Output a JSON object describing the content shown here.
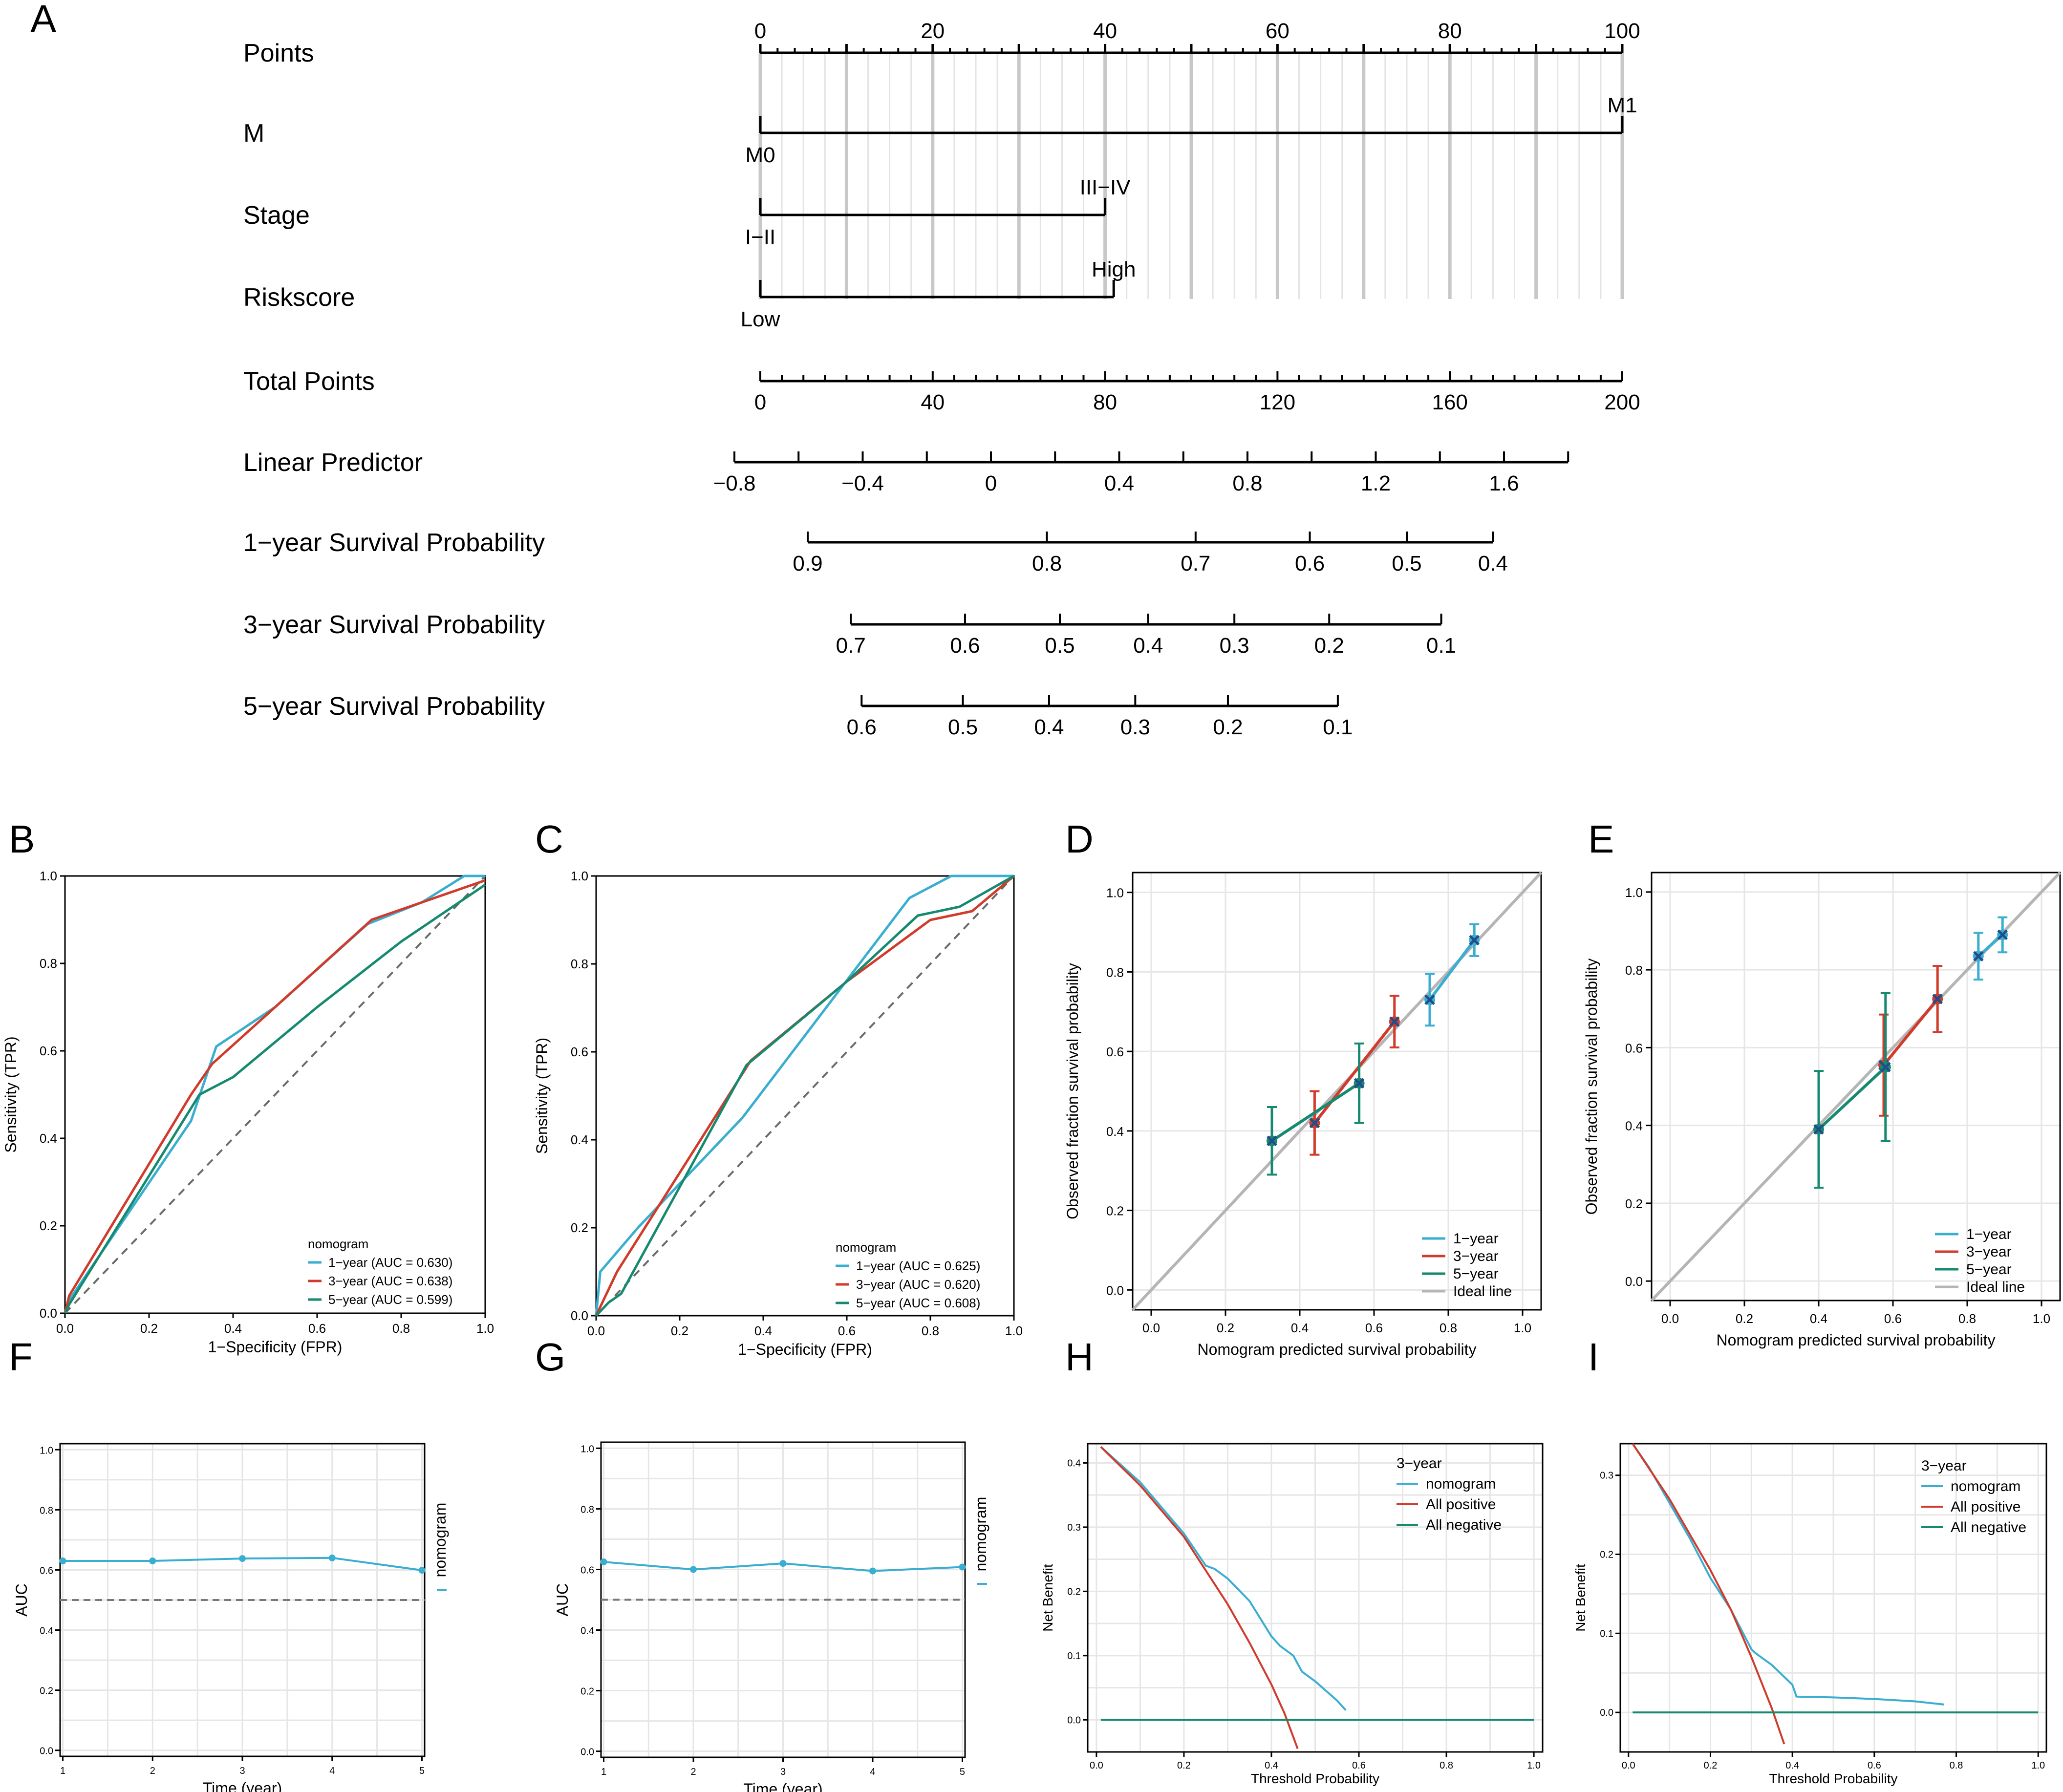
{
  "panel_letters": [
    "A",
    "B",
    "C",
    "D",
    "E",
    "F",
    "G",
    "H",
    "I"
  ],
  "colors": {
    "c1": "#3aaed0",
    "c3": "#d13b2b",
    "c5": "#168a6f",
    "ideal": "#b5b5b5",
    "grid": "#e6e6e6",
    "diag": "#6b6b6b",
    "dark": "#1f4e8a"
  },
  "chart_data": [
    {
      "panel": "A",
      "type": "nomogram",
      "rows": [
        {
          "label": "Points",
          "scale": "points",
          "ticks": [
            "0",
            "20",
            "40",
            "60",
            "80",
            "100"
          ],
          "values": [
            0,
            20,
            40,
            60,
            80,
            100
          ]
        },
        {
          "label": "M",
          "levels": [
            {
              "name": "M0",
              "points": 0
            },
            {
              "name": "M1",
              "points": 100
            }
          ]
        },
        {
          "label": "Stage",
          "levels": [
            {
              "name": "I−II",
              "points": 0
            },
            {
              "name": "III−IV",
              "points": 40
            }
          ]
        },
        {
          "label": "Riskscore",
          "levels": [
            {
              "name": "Low",
              "points": 0
            },
            {
              "name": "High",
              "points": 41
            }
          ]
        },
        {
          "label": "Total Points",
          "ticks": [
            "0",
            "40",
            "80",
            "120",
            "160",
            "200"
          ],
          "values": [
            0,
            40,
            80,
            120,
            160,
            200
          ]
        },
        {
          "label": "Linear Predictor",
          "ticks": [
            "−0.8",
            "−0.4",
            "0",
            "0.4",
            "0.8",
            "1.2",
            "1.6"
          ],
          "values": [
            -0.8,
            -0.4,
            0,
            0.4,
            0.8,
            1.2,
            1.6
          ]
        },
        {
          "label": "1−year Survival Probability",
          "ticks": [
            "0.9",
            "0.8",
            "0.7",
            "0.6",
            "0.5",
            "0.4"
          ],
          "total_points": [
            11,
            66.5,
            101,
            127.5,
            150,
            170
          ]
        },
        {
          "label": "3−year Survival Probability",
          "ticks": [
            "0.7",
            "0.6",
            "0.5",
            "0.4",
            "0.3",
            "0.2",
            "0.1"
          ],
          "total_points": [
            21,
            47.5,
            69.5,
            90,
            110,
            132,
            158
          ]
        },
        {
          "label": "5−year Survival Probability",
          "ticks": [
            "0.6",
            "0.5",
            "0.4",
            "0.3",
            "0.2",
            "0.1"
          ],
          "total_points": [
            23.5,
            47,
            67,
            87,
            108.5,
            134
          ]
        }
      ]
    },
    {
      "panel": "B",
      "type": "line",
      "title": "",
      "xlabel": "1−Specificity (FPR)",
      "ylabel": "Sensitivity (TPR)",
      "xlim": [
        0,
        1
      ],
      "ylim": [
        0,
        1
      ],
      "ticks": [
        "0.0",
        "0.2",
        "0.4",
        "0.6",
        "0.8",
        "1.0"
      ],
      "legend_title": "nomogram",
      "series": [
        {
          "name": "1−year (AUC = 0.630)",
          "x": [
            0,
            0.01,
            0.3,
            0.36,
            0.5,
            0.72,
            0.85,
            0.95,
            1.0
          ],
          "y": [
            0,
            0.03,
            0.44,
            0.61,
            0.7,
            0.89,
            0.94,
            1.0,
            1.0
          ]
        },
        {
          "name": "3−year (AUC = 0.638)",
          "x": [
            0,
            0.01,
            0.3,
            0.35,
            0.5,
            0.73,
            0.88,
            1.0
          ],
          "y": [
            0,
            0.04,
            0.5,
            0.57,
            0.7,
            0.9,
            0.95,
            0.99
          ]
        },
        {
          "name": "5−year (AUC = 0.599)",
          "x": [
            0,
            0.01,
            0.32,
            0.4,
            0.6,
            0.8,
            1.0
          ],
          "y": [
            0,
            0.02,
            0.5,
            0.54,
            0.7,
            0.85,
            0.98
          ]
        }
      ]
    },
    {
      "panel": "C",
      "type": "line",
      "title": "",
      "xlabel": "1−Specificity (FPR)",
      "ylabel": "Sensitivity (TPR)",
      "xlim": [
        0,
        1
      ],
      "ylim": [
        0,
        1
      ],
      "ticks": [
        "0.0",
        "0.2",
        "0.4",
        "0.6",
        "0.8",
        "1.0"
      ],
      "legend_title": "nomogram",
      "series": [
        {
          "name": "1−year (AUC = 0.625)",
          "x": [
            0,
            0.01,
            0.1,
            0.35,
            0.75,
            0.85,
            1.0
          ],
          "y": [
            0,
            0.1,
            0.2,
            0.45,
            0.95,
            1.0,
            1.0
          ]
        },
        {
          "name": "3−year (AUC = 0.620)",
          "x": [
            0,
            0.01,
            0.05,
            0.37,
            0.6,
            0.8,
            0.9,
            1.0
          ],
          "y": [
            0,
            0.02,
            0.1,
            0.58,
            0.76,
            0.9,
            0.92,
            1.0
          ]
        },
        {
          "name": "5−year (AUC = 0.608)",
          "x": [
            0,
            0.03,
            0.06,
            0.36,
            0.6,
            0.77,
            0.87,
            1.0
          ],
          "y": [
            0,
            0.03,
            0.05,
            0.57,
            0.76,
            0.91,
            0.93,
            1.0
          ]
        }
      ]
    },
    {
      "panel": "D",
      "type": "scatter",
      "xlabel": "Nomogram predicted survival probability",
      "ylabel": "Observed fraction survival probability",
      "xlim": [
        -0.05,
        1.05
      ],
      "ylim": [
        -0.05,
        1.05
      ],
      "ticks": [
        "0.0",
        "0.2",
        "0.4",
        "0.6",
        "0.8",
        "1.0"
      ],
      "legend": [
        "1−year",
        "3−year",
        "5−year",
        "Ideal line"
      ],
      "series": [
        {
          "name": "1−year",
          "x": [
            0.75,
            0.87
          ],
          "y": [
            0.73,
            0.88
          ],
          "err": [
            0.065,
            0.04
          ]
        },
        {
          "name": "3−year",
          "x": [
            0.44,
            0.655
          ],
          "y": [
            0.42,
            0.675
          ],
          "err": [
            0.08,
            0.065
          ]
        },
        {
          "name": "5−year",
          "x": [
            0.325,
            0.56
          ],
          "y": [
            0.375,
            0.52
          ],
          "err": [
            0.085,
            0.1
          ]
        }
      ]
    },
    {
      "panel": "E",
      "type": "scatter",
      "xlabel": "Nomogram predicted survival probability",
      "ylabel": "Observed fraction survival probability",
      "xlim": [
        -0.05,
        1.05
      ],
      "ylim": [
        -0.05,
        1.05
      ],
      "ticks": [
        "0.0",
        "0.2",
        "0.4",
        "0.6",
        "0.8",
        "1.0"
      ],
      "legend": [
        "1−year",
        "3−year",
        "5−year",
        "Ideal line"
      ],
      "series": [
        {
          "name": "1−year",
          "x": [
            0.83,
            0.895
          ],
          "y": [
            0.835,
            0.89
          ],
          "err": [
            0.06,
            0.045
          ]
        },
        {
          "name": "3−year",
          "x": [
            0.575,
            0.72
          ],
          "y": [
            0.555,
            0.725
          ],
          "err": [
            0.13,
            0.085
          ]
        },
        {
          "name": "5−year",
          "x": [
            0.4,
            0.58
          ],
          "y": [
            0.39,
            0.55
          ],
          "err": [
            0.15,
            0.19
          ]
        }
      ]
    },
    {
      "panel": "F",
      "type": "line",
      "xlabel": "Time (year)",
      "ylabel": "AUC",
      "xlim": [
        1,
        5
      ],
      "ylim": [
        0,
        1
      ],
      "xticks": [
        "1",
        "2",
        "3",
        "4",
        "5"
      ],
      "yticks": [
        "0.0",
        "0.2",
        "0.4",
        "0.6",
        "0.8",
        "1.0"
      ],
      "legend": "nomogram",
      "reference": 0.5,
      "series": [
        {
          "name": "nomogram",
          "x": [
            1,
            2,
            3,
            4,
            5
          ],
          "y": [
            0.63,
            0.63,
            0.638,
            0.64,
            0.599
          ]
        }
      ]
    },
    {
      "panel": "G",
      "type": "line",
      "xlabel": "Time (year)",
      "ylabel": "AUC",
      "xlim": [
        1,
        5
      ],
      "ylim": [
        0,
        1
      ],
      "xticks": [
        "1",
        "2",
        "3",
        "4",
        "5"
      ],
      "yticks": [
        "0.0",
        "0.2",
        "0.4",
        "0.6",
        "0.8",
        "1.0"
      ],
      "legend": "nomogram",
      "reference": 0.5,
      "series": [
        {
          "name": "nomogram",
          "x": [
            1,
            2,
            3,
            4,
            5
          ],
          "y": [
            0.625,
            0.6,
            0.62,
            0.595,
            0.608
          ]
        }
      ]
    },
    {
      "panel": "H",
      "type": "line",
      "xlabel": "Threshold Probability",
      "ylabel": "Net Benefit",
      "xlim": [
        0,
        1
      ],
      "ylim": [
        -0.05,
        0.43
      ],
      "xticks": [
        "0.0",
        "0.2",
        "0.4",
        "0.6",
        "0.8",
        "1.0"
      ],
      "yticks": [
        "0.0",
        "0.1",
        "0.2",
        "0.3",
        "0.4"
      ],
      "legend_title": "3−year",
      "legend": [
        "nomogram",
        "All positive",
        "All negative"
      ],
      "series": [
        {
          "name": "nomogram",
          "x": [
            0.01,
            0.1,
            0.2,
            0.25,
            0.27,
            0.3,
            0.35,
            0.4,
            0.42,
            0.45,
            0.47,
            0.5,
            0.55,
            0.57
          ],
          "y": [
            0.425,
            0.37,
            0.29,
            0.24,
            0.235,
            0.22,
            0.185,
            0.13,
            0.115,
            0.1,
            0.075,
            0.06,
            0.03,
            0.015
          ]
        },
        {
          "name": "All positive",
          "x": [
            0.01,
            0.1,
            0.2,
            0.3,
            0.35,
            0.4,
            0.43,
            0.46
          ],
          "y": [
            0.425,
            0.365,
            0.285,
            0.18,
            0.12,
            0.055,
            0.01,
            -0.045
          ]
        },
        {
          "name": "All negative",
          "x": [
            0.01,
            1.0
          ],
          "y": [
            0,
            0
          ]
        }
      ]
    },
    {
      "panel": "I",
      "type": "line",
      "xlabel": "Threshold Probability",
      "ylabel": "Net Benefit",
      "xlim": [
        0,
        1
      ],
      "ylim": [
        -0.05,
        0.34
      ],
      "xticks": [
        "0.0",
        "0.2",
        "0.4",
        "0.6",
        "0.8",
        "1.0"
      ],
      "yticks": [
        "0.0",
        "0.1",
        "0.2",
        "0.3"
      ],
      "legend_title": "3−year",
      "legend": [
        "nomogram",
        "All positive",
        "All negative"
      ],
      "series": [
        {
          "name": "nomogram",
          "x": [
            0.01,
            0.05,
            0.1,
            0.15,
            0.2,
            0.25,
            0.3,
            0.31,
            0.35,
            0.4,
            0.41,
            0.5,
            0.6,
            0.7,
            0.77
          ],
          "y": [
            0.34,
            0.31,
            0.265,
            0.22,
            0.17,
            0.13,
            0.08,
            0.075,
            0.06,
            0.035,
            0.02,
            0.019,
            0.017,
            0.014,
            0.01
          ]
        },
        {
          "name": "All positive",
          "x": [
            0.01,
            0.1,
            0.2,
            0.25,
            0.3,
            0.35,
            0.38
          ],
          "y": [
            0.34,
            0.27,
            0.18,
            0.13,
            0.07,
            0.005,
            -0.04
          ]
        },
        {
          "name": "All negative",
          "x": [
            0.01,
            1.0
          ],
          "y": [
            0,
            0
          ]
        }
      ]
    }
  ]
}
